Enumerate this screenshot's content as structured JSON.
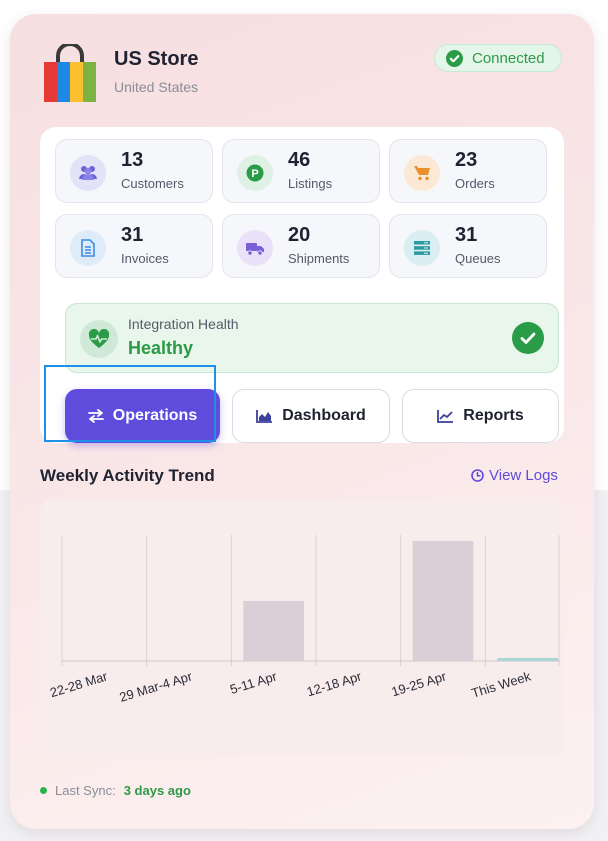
{
  "store": {
    "name": "US Store",
    "country": "United States",
    "status": "Connected",
    "status_color": "#2e9a4c",
    "logo_colors": [
      "#e53935",
      "#1e88e5",
      "#fbc02d",
      "#7cb342"
    ]
  },
  "stats": [
    {
      "value": "13",
      "label": "Customers",
      "icon": "users-icon",
      "color": "#6c63d9",
      "bg": "#e4e2f7"
    },
    {
      "value": "46",
      "label": "Listings",
      "icon": "parking-icon",
      "color": "#2a9b47",
      "bg": "#dff1e4"
    },
    {
      "value": "23",
      "label": "Orders",
      "icon": "cart-icon",
      "color": "#e8912c",
      "bg": "#fbe9d6"
    },
    {
      "value": "31",
      "label": "Invoices",
      "icon": "document-icon",
      "color": "#3b8ce0",
      "bg": "#deebf8"
    },
    {
      "value": "20",
      "label": "Shipments",
      "icon": "truck-icon",
      "color": "#7b5fd8",
      "bg": "#e8e1f8"
    },
    {
      "value": "31",
      "label": "Queues",
      "icon": "stack-icon",
      "color": "#2b9aa0",
      "bg": "#d9eef0"
    }
  ],
  "health": {
    "title": "Integration Health",
    "status": "Healthy",
    "icon": "heartbeat-icon"
  },
  "actions": {
    "operations": "Operations",
    "dashboard": "Dashboard",
    "reports": "Reports"
  },
  "trend": {
    "title": "Weekly Activity Trend",
    "view_logs": "View Logs"
  },
  "sync": {
    "label": "Last Sync:",
    "value": "3 days ago"
  },
  "chart_data": {
    "type": "bar",
    "categories": [
      "22-28 Mar",
      "29 Mar-4 Apr",
      "5-11 Apr",
      "12-18 Apr",
      "19-25 Apr",
      "This Week"
    ],
    "values": [
      0,
      0,
      2,
      0,
      4,
      0.1
    ],
    "ylim": [
      0,
      4.2
    ],
    "grid": "vertical",
    "colors": [
      "#dacfd6",
      "#dacfd6",
      "#dacfd6",
      "#dacfd6",
      "#dacfd6",
      "#a9d7d8"
    ]
  }
}
